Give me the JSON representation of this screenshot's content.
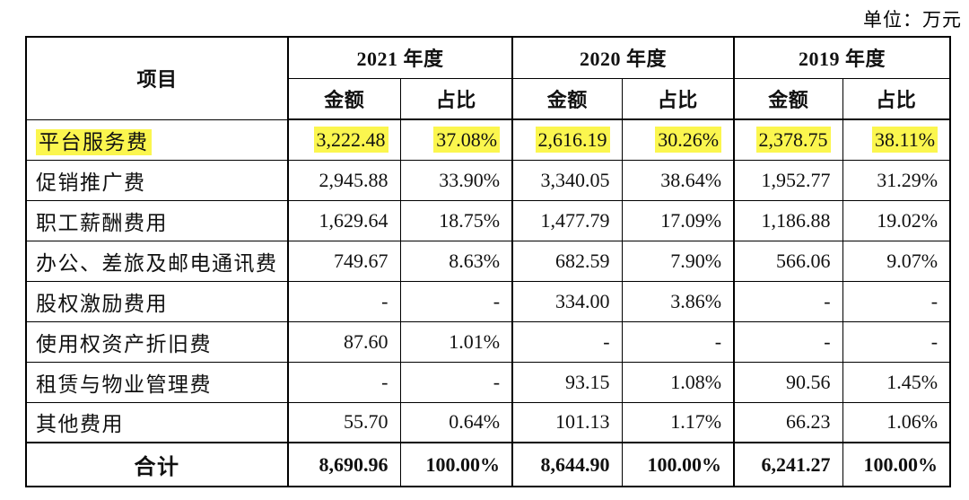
{
  "unit_label": "单位：万元",
  "colors": {
    "highlight": "#fbf64e",
    "border": "#000000",
    "text": "#111111"
  },
  "table": {
    "item_header": "项目",
    "year_groups": [
      "2021 年度",
      "2020 年度",
      "2019 年度"
    ],
    "col_headers": [
      "金额",
      "占比",
      "金额",
      "占比",
      "金额",
      "占比"
    ],
    "rows": [
      {
        "label": "平台服务费",
        "values": [
          "3,222.48",
          "37.08%",
          "2,616.19",
          "30.26%",
          "2,378.75",
          "38.11%"
        ],
        "highlight": true
      },
      {
        "label": "促销推广费",
        "values": [
          "2,945.88",
          "33.90%",
          "3,340.05",
          "38.64%",
          "1,952.77",
          "31.29%"
        ],
        "highlight": false
      },
      {
        "label": "职工薪酬费用",
        "values": [
          "1,629.64",
          "18.75%",
          "1,477.79",
          "17.09%",
          "1,186.88",
          "19.02%"
        ],
        "highlight": false
      },
      {
        "label": "办公、差旅及邮电通讯费",
        "values": [
          "749.67",
          "8.63%",
          "682.59",
          "7.90%",
          "566.06",
          "9.07%"
        ],
        "highlight": false
      },
      {
        "label": "股权激励费用",
        "values": [
          "-",
          "-",
          "334.00",
          "3.86%",
          "-",
          "-"
        ],
        "highlight": false
      },
      {
        "label": "使用权资产折旧费",
        "values": [
          "87.60",
          "1.01%",
          "-",
          "-",
          "-",
          "-"
        ],
        "highlight": false
      },
      {
        "label": "租赁与物业管理费",
        "values": [
          "-",
          "-",
          "93.15",
          "1.08%",
          "90.56",
          "1.45%"
        ],
        "highlight": false
      },
      {
        "label": "其他费用",
        "values": [
          "55.70",
          "0.64%",
          "101.13",
          "1.17%",
          "66.23",
          "1.06%"
        ],
        "highlight": false
      }
    ],
    "total_row": {
      "label": "合计",
      "values": [
        "8,690.96",
        "100.00%",
        "8,644.90",
        "100.00%",
        "6,241.27",
        "100.00%"
      ]
    }
  }
}
